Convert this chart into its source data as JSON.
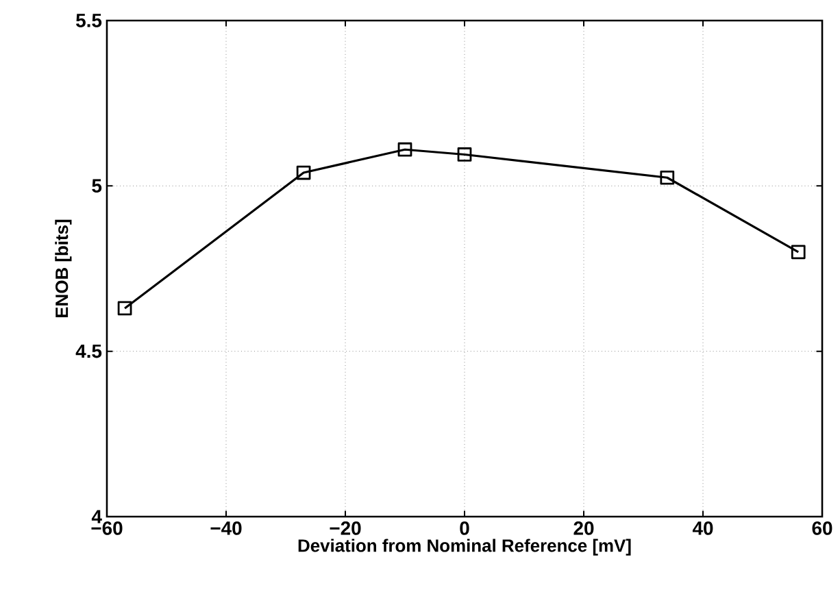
{
  "chart_data": {
    "type": "line",
    "xlabel": "Deviation from Nominal Reference [mV]",
    "ylabel": "ENOB [bits]",
    "x": [
      -57,
      -27,
      -10,
      0,
      34,
      56
    ],
    "series": [
      {
        "color": "#000000",
        "values": [
          4.63,
          5.04,
          5.11,
          5.095,
          5.025,
          4.8
        ]
      }
    ],
    "xlim": [
      -60,
      60
    ],
    "xticks": [
      {
        "value": -60,
        "label": "−60"
      },
      {
        "value": -40,
        "label": "−40"
      },
      {
        "value": -20,
        "label": "−20"
      },
      0,
      20,
      40,
      60
    ],
    "ylim": [
      4,
      5.5
    ],
    "yticks": [
      4,
      4.5,
      5,
      5.5
    ],
    "grid": true,
    "marker": "square",
    "line_style": "solid"
  }
}
